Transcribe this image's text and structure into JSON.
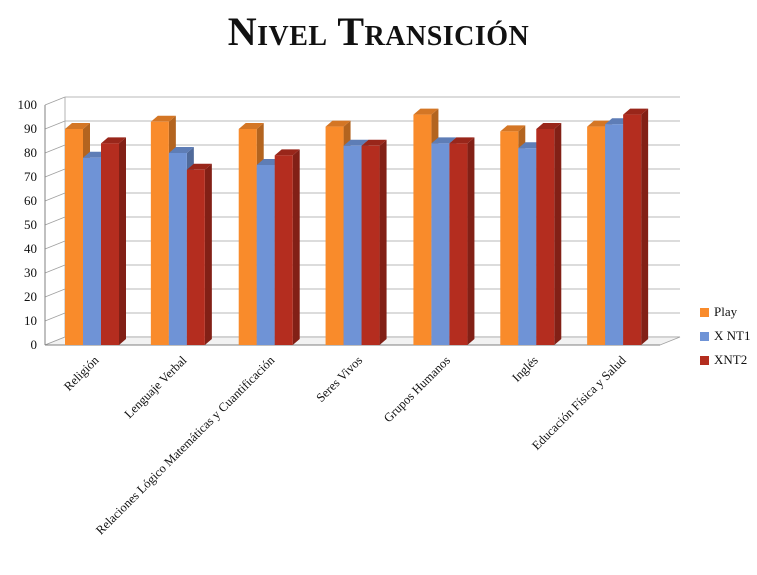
{
  "chart_data": {
    "type": "bar",
    "title": "Nivel Transición",
    "categories": [
      "Religión",
      "Lenguaje Verbal",
      "Relaciones Lógico Matemáticas y Cuantificación",
      "Seres Vivos",
      "Grupos Humanos",
      "Inglés",
      "Educación Física y Salud"
    ],
    "series": [
      {
        "name": "Play",
        "values": [
          90,
          93,
          90,
          91,
          96,
          89,
          91
        ],
        "color": "#F98B2B"
      },
      {
        "name": "X NT1",
        "values": [
          78,
          80,
          75,
          83,
          84,
          82,
          92
        ],
        "color": "#6F93D6"
      },
      {
        "name": "XNT2",
        "values": [
          84,
          73,
          79,
          83,
          84,
          90,
          96
        ],
        "color": "#B42D1F"
      }
    ],
    "yticks": [
      "0",
      "10",
      "20",
      "30",
      "40",
      "50",
      "60",
      "70",
      "80",
      "90",
      "100"
    ],
    "ylim": [
      0,
      100
    ],
    "grid": true,
    "legend_position": "right",
    "xlabel": "",
    "ylabel": ""
  }
}
